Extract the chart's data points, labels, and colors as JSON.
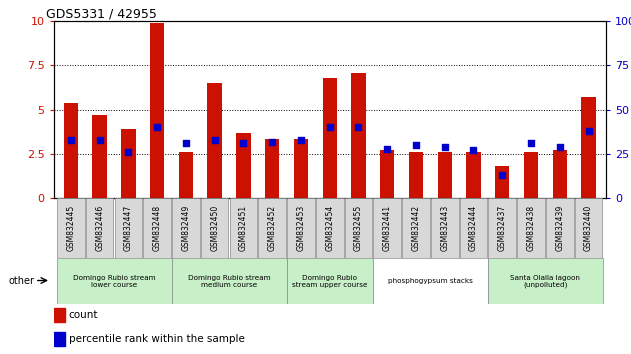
{
  "title": "GDS5331 / 42955",
  "samples": [
    "GSM832445",
    "GSM832446",
    "GSM832447",
    "GSM832448",
    "GSM832449",
    "GSM832450",
    "GSM832451",
    "GSM832452",
    "GSM832453",
    "GSM832454",
    "GSM832455",
    "GSM832441",
    "GSM832442",
    "GSM832443",
    "GSM832444",
    "GSM832437",
    "GSM832438",
    "GSM832439",
    "GSM832440"
  ],
  "count": [
    5.4,
    4.7,
    3.9,
    9.9,
    2.6,
    6.5,
    3.7,
    3.35,
    3.35,
    6.8,
    7.1,
    2.7,
    2.6,
    2.6,
    2.6,
    1.8,
    2.6,
    2.7,
    5.7
  ],
  "percentile": [
    33,
    33,
    26,
    40,
    31,
    33,
    31,
    32,
    33,
    40,
    40,
    28,
    30,
    29,
    27,
    13,
    31,
    29,
    38
  ],
  "group_boundaries": [
    {
      "start": 0,
      "end": 3,
      "label": "Domingo Rubio stream\nlower course",
      "color": "#c8f0c8"
    },
    {
      "start": 4,
      "end": 7,
      "label": "Domingo Rubio stream\nmedium course",
      "color": "#c8f0c8"
    },
    {
      "start": 8,
      "end": 10,
      "label": "Domingo Rubio\nstream upper course",
      "color": "#c8f0c8"
    },
    {
      "start": 11,
      "end": 14,
      "label": "phosphogypsum stacks",
      "color": "#ffffff"
    },
    {
      "start": 15,
      "end": 18,
      "label": "Santa Olalla lagoon\n(unpolluted)",
      "color": "#c8f0c8"
    }
  ],
  "ylim_left": [
    0,
    10
  ],
  "ylim_right": [
    0,
    100
  ],
  "yticks_left": [
    0,
    2.5,
    5.0,
    7.5,
    10
  ],
  "yticks_right": [
    0,
    25,
    50,
    75,
    100
  ],
  "bar_color": "#cc1100",
  "dot_color": "#0000cc",
  "legend_count_label": "count",
  "legend_pct_label": "percentile rank within the sample",
  "other_label": "other"
}
